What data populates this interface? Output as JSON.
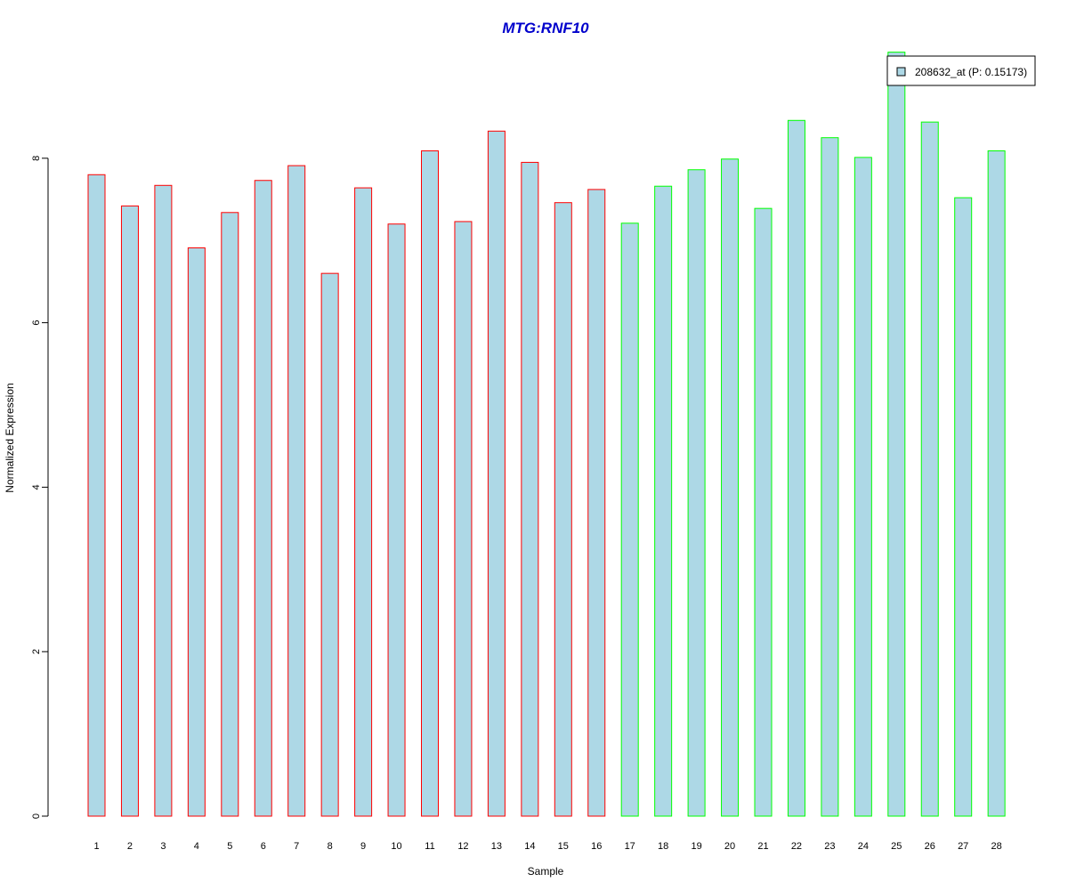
{
  "chart_data": {
    "type": "bar",
    "title": "MTG:RNF10",
    "xlabel": "Sample",
    "ylabel": "Normalized Expression",
    "categories": [
      "1",
      "2",
      "3",
      "4",
      "5",
      "6",
      "7",
      "8",
      "9",
      "10",
      "11",
      "12",
      "13",
      "14",
      "15",
      "16",
      "17",
      "18",
      "19",
      "20",
      "21",
      "22",
      "23",
      "24",
      "25",
      "26",
      "27",
      "28"
    ],
    "series": [
      {
        "name": "208632_at (P: 0.15173)",
        "values": [
          7.8,
          7.42,
          7.67,
          6.91,
          7.34,
          7.73,
          7.91,
          6.6,
          7.64,
          7.2,
          8.09,
          7.23,
          8.33,
          7.95,
          7.46,
          7.62,
          7.21,
          7.66,
          7.86,
          7.99,
          7.39,
          8.46,
          8.25,
          8.01,
          9.29,
          8.44,
          7.52,
          8.09
        ]
      }
    ],
    "groups": [
      {
        "samples": [
          1,
          16
        ],
        "border_color": "#ff0000"
      },
      {
        "samples": [
          17,
          28
        ],
        "border_color": "#00ff00"
      }
    ],
    "yticks": [
      0,
      2,
      4,
      6,
      8
    ],
    "ylim": [
      0,
      9.29
    ],
    "grid": false,
    "legend_position": "top-right",
    "colors": {
      "title": "#0000cc",
      "bar_fill": "#add8e6",
      "axis": "#000000"
    }
  }
}
